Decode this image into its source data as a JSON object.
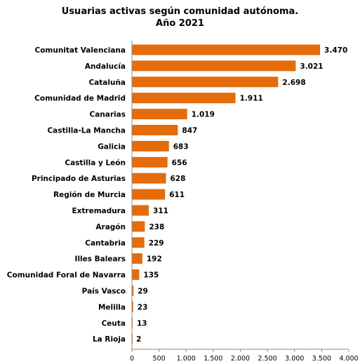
{
  "chart_data": {
    "type": "bar",
    "orientation": "horizontal",
    "title": "Usuarias activas según comunidad autónoma.",
    "subtitle": "Año 2021",
    "categories": [
      "Comunitat Valenciana",
      "Andalucía",
      "Cataluña",
      "Comunidad de Madrid",
      "Canarias",
      "Castilla-La Mancha",
      "Galicia",
      "Castilla y León",
      "Principado de Asturias",
      "Región de Murcia",
      "Extremadura",
      "Aragón",
      "Cantabria",
      "Illes Balears",
      "Comunidad Foral de Navarra",
      "País Vasco",
      "Melilla",
      "Ceuta",
      "La Rioja"
    ],
    "values": [
      3470,
      3021,
      2698,
      1911,
      1019,
      847,
      683,
      656,
      628,
      611,
      311,
      238,
      229,
      192,
      135,
      29,
      23,
      13,
      2
    ],
    "data_labels": [
      "3.470",
      "3.021",
      "2.698",
      "1.911",
      "1.019",
      "847",
      "683",
      "656",
      "628",
      "611",
      "311",
      "238",
      "229",
      "192",
      "135",
      "29",
      "23",
      "13",
      "2"
    ],
    "xticks": [
      0,
      500,
      1000,
      1500,
      2000,
      2500,
      3000,
      3500,
      4000
    ],
    "xtick_labels": [
      "0",
      "500",
      "1.000",
      "1.500",
      "2.000",
      "2.500",
      "3.000",
      "3.500",
      "4.000"
    ],
    "xlim": [
      0,
      4000
    ],
    "xlabel": "",
    "ylabel": "",
    "grid": false,
    "legend": "none",
    "bar_color": "#E46C0A"
  }
}
